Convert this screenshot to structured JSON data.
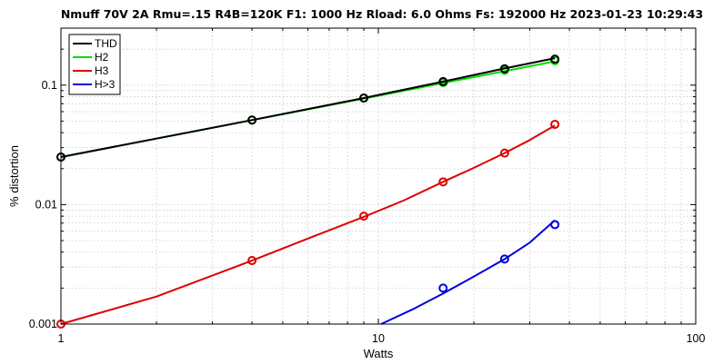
{
  "chart_data": {
    "type": "line",
    "title": "Nmuff 70V 2A Rmu=.15 R4B=120K F1: 1000 Hz   Rload: 6.0 Ohms   Fs: 192000 Hz  2023-01-23 10:29:43",
    "xlabel": "Watts",
    "ylabel": "% distortion",
    "xscale": "log",
    "yscale": "log",
    "xlim": [
      1,
      100
    ],
    "ylim": [
      0.001,
      0.3
    ],
    "xticks": [
      "1",
      "10",
      "100"
    ],
    "yticks": [
      "0.001",
      "0.01",
      "0.1"
    ],
    "grid": true,
    "legend_position": "top-left",
    "series": [
      {
        "name": "THD",
        "color": "#000000",
        "points_x": [
          1,
          4,
          9,
          16,
          25,
          36
        ],
        "points_y": [
          0.025,
          0.051,
          0.078,
          0.107,
          0.137,
          0.165
        ],
        "curve_x": [
          1,
          4,
          9,
          16,
          25,
          36
        ],
        "curve_y": [
          0.025,
          0.051,
          0.078,
          0.107,
          0.138,
          0.168
        ]
      },
      {
        "name": "H2",
        "color": "#00dd00",
        "points_x": [
          1,
          4,
          9,
          16,
          25,
          36
        ],
        "points_y": [
          0.025,
          0.051,
          0.078,
          0.105,
          0.133,
          0.16
        ],
        "curve_x": [
          1,
          4,
          9,
          16,
          25,
          36
        ],
        "curve_y": [
          0.025,
          0.051,
          0.077,
          0.104,
          0.131,
          0.158
        ]
      },
      {
        "name": "H3",
        "color": "#dd0000",
        "points_x": [
          1,
          4,
          9,
          16,
          25,
          36
        ],
        "points_y": [
          0.001,
          0.0034,
          0.008,
          0.0155,
          0.027,
          0.047
        ],
        "curve_x": [
          1,
          2,
          4,
          6,
          9,
          12,
          16,
          20,
          25,
          30,
          36
        ],
        "curve_y": [
          0.001,
          0.0017,
          0.0034,
          0.0052,
          0.0079,
          0.0108,
          0.0155,
          0.0203,
          0.027,
          0.0347,
          0.046
        ]
      },
      {
        "name": "H>3",
        "color": "#0000dd",
        "points_x": [
          16,
          25,
          36
        ],
        "points_y": [
          0.002,
          0.0035,
          0.0068
        ],
        "curve_x": [
          10.2,
          13,
          16,
          20,
          25,
          30,
          36
        ],
        "curve_y": [
          0.001,
          0.00135,
          0.0018,
          0.0025,
          0.0035,
          0.0048,
          0.0074
        ]
      }
    ]
  }
}
